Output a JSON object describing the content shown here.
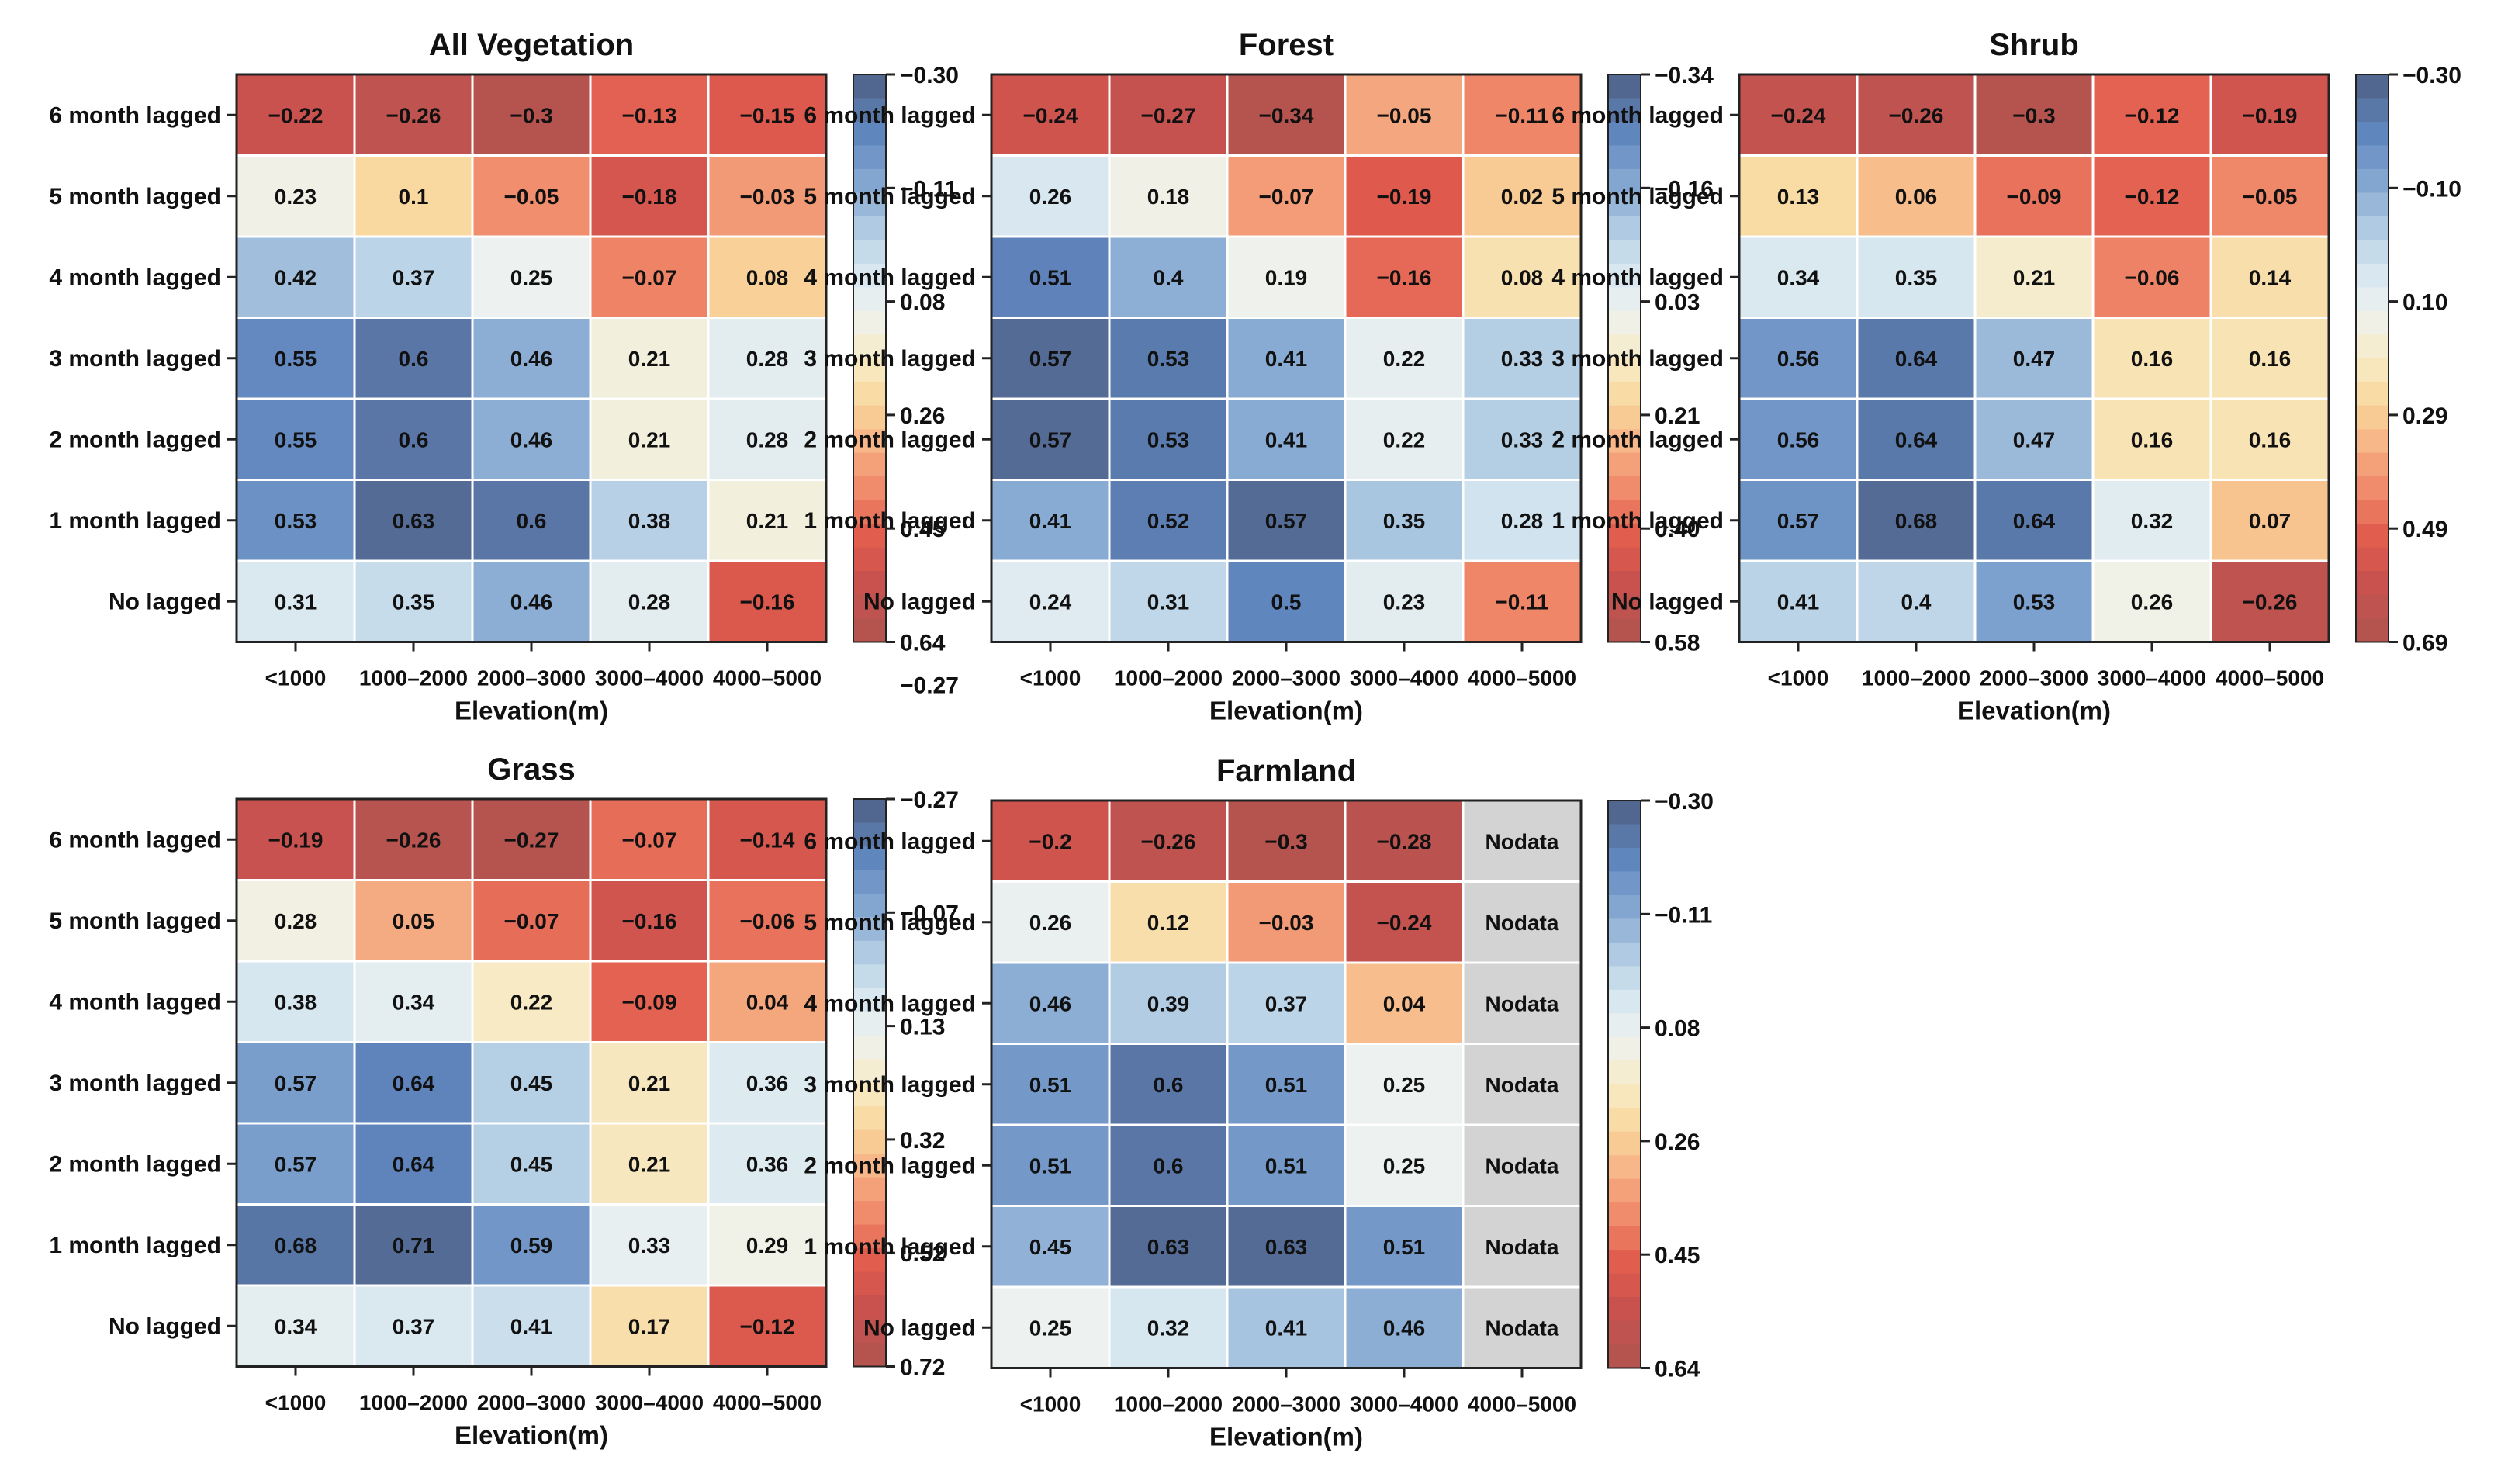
{
  "chart_data": [
    {
      "type": "heatmap",
      "title": "All Vegetation",
      "xlabel": "Elevation(m)",
      "rows": [
        "6 month lagged",
        "5 month lagged",
        "4 month lagged",
        "3 month lagged",
        "2 month lagged",
        "1 month lagged",
        "No lagged"
      ],
      "columns": [
        "<1000",
        "1000–2000",
        "2000–3000",
        "3000–4000",
        "4000–5000"
      ],
      "values": [
        [
          "−0.22",
          "−0.26",
          "−0.3",
          "−0.13",
          "−0.15"
        ],
        [
          "0.23",
          "0.1",
          "−0.05",
          "−0.18",
          "−0.03"
        ],
        [
          "0.42",
          "0.37",
          "0.25",
          "−0.07",
          "0.08"
        ],
        [
          "0.55",
          "0.6",
          "0.46",
          "0.21",
          "0.28"
        ],
        [
          "0.55",
          "0.6",
          "0.46",
          "0.21",
          "0.28"
        ],
        [
          "0.53",
          "0.63",
          "0.6",
          "0.38",
          "0.21"
        ],
        [
          "0.31",
          "0.35",
          "0.46",
          "0.28",
          "−0.16"
        ]
      ],
      "colorbar_ticks": [
        "−0.30",
        "−0.11",
        "0.08",
        "0.26",
        "0.45",
        "0.64"
      ],
      "colorbar_extra": "−0.27",
      "range": [
        -0.3,
        0.64
      ]
    },
    {
      "type": "heatmap",
      "title": "Forest",
      "xlabel": "Elevation(m)",
      "rows": [
        "6 month lagged",
        "5 month lagged",
        "4 month lagged",
        "3 month lagged",
        "2 month lagged",
        "1 month lagged",
        "No lagged"
      ],
      "columns": [
        "<1000",
        "1000–2000",
        "2000–3000",
        "3000–4000",
        "4000–5000"
      ],
      "values": [
        [
          "−0.24",
          "−0.27",
          "−0.34",
          "−0.05",
          "−0.11"
        ],
        [
          "0.26",
          "0.18",
          "−0.07",
          "−0.19",
          "0.02"
        ],
        [
          "0.51",
          "0.4",
          "0.19",
          "−0.16",
          "0.08"
        ],
        [
          "0.57",
          "0.53",
          "0.41",
          "0.22",
          "0.33"
        ],
        [
          "0.57",
          "0.53",
          "0.41",
          "0.22",
          "0.33"
        ],
        [
          "0.41",
          "0.52",
          "0.57",
          "0.35",
          "0.28"
        ],
        [
          "0.24",
          "0.31",
          "0.5",
          "0.23",
          "−0.11"
        ]
      ],
      "colorbar_ticks": [
        "−0.34",
        "−0.16",
        "0.03",
        "0.21",
        "0.40",
        "0.58"
      ],
      "range": [
        -0.34,
        0.58
      ]
    },
    {
      "type": "heatmap",
      "title": "Shrub",
      "xlabel": "Elevation(m)",
      "rows": [
        "6 month lagged",
        "5 month lagged",
        "4 month lagged",
        "3 month lagged",
        "2 month lagged",
        "1 month lagged",
        "No lagged"
      ],
      "columns": [
        "<1000",
        "1000–2000",
        "2000–3000",
        "3000–4000",
        "4000–5000"
      ],
      "values": [
        [
          "−0.24",
          "−0.26",
          "−0.3",
          "−0.12",
          "−0.19"
        ],
        [
          "0.13",
          "0.06",
          "−0.09",
          "−0.12",
          "−0.05"
        ],
        [
          "0.34",
          "0.35",
          "0.21",
          "−0.06",
          "0.14"
        ],
        [
          "0.56",
          "0.64",
          "0.47",
          "0.16",
          "0.16"
        ],
        [
          "0.56",
          "0.64",
          "0.47",
          "0.16",
          "0.16"
        ],
        [
          "0.57",
          "0.68",
          "0.64",
          "0.32",
          "0.07"
        ],
        [
          "0.41",
          "0.4",
          "0.53",
          "0.26",
          "−0.26"
        ]
      ],
      "colorbar_ticks": [
        "−0.30",
        "−0.10",
        "0.10",
        "0.29",
        "0.49",
        "0.69"
      ],
      "range": [
        -0.3,
        0.69
      ]
    },
    {
      "type": "heatmap",
      "title": "Grass",
      "xlabel": "Elevation(m)",
      "rows": [
        "6 month lagged",
        "5 month lagged",
        "4 month lagged",
        "3 month lagged",
        "2 month lagged",
        "1 month lagged",
        "No lagged"
      ],
      "columns": [
        "<1000",
        "1000–2000",
        "2000–3000",
        "3000–4000",
        "4000–5000"
      ],
      "values": [
        [
          "−0.19",
          "−0.26",
          "−0.27",
          "−0.07",
          "−0.14"
        ],
        [
          "0.28",
          "0.05",
          "−0.07",
          "−0.16",
          "−0.06"
        ],
        [
          "0.38",
          "0.34",
          "0.22",
          "−0.09",
          "0.04"
        ],
        [
          "0.57",
          "0.64",
          "0.45",
          "0.21",
          "0.36"
        ],
        [
          "0.57",
          "0.64",
          "0.45",
          "0.21",
          "0.36"
        ],
        [
          "0.68",
          "0.71",
          "0.59",
          "0.33",
          "0.29"
        ],
        [
          "0.34",
          "0.37",
          "0.41",
          "0.17",
          "−0.12"
        ]
      ],
      "colorbar_ticks": [
        "−0.27",
        "−0.07",
        "0.13",
        "0.32",
        "0.52",
        "0.72"
      ],
      "range": [
        -0.27,
        0.72
      ]
    },
    {
      "type": "heatmap",
      "title": "Farmland",
      "xlabel": "Elevation(m)",
      "rows": [
        "6 month lagged",
        "5 month lagged",
        "4 month lagged",
        "3 month lagged",
        "2 month lagged",
        "1 month lagged",
        "No lagged"
      ],
      "columns": [
        "<1000",
        "1000–2000",
        "2000–3000",
        "3000–4000",
        "4000–5000"
      ],
      "values": [
        [
          "−0.2",
          "−0.26",
          "−0.3",
          "−0.28",
          "Nodata"
        ],
        [
          "0.26",
          "0.12",
          "−0.03",
          "−0.24",
          "Nodata"
        ],
        [
          "0.46",
          "0.39",
          "0.37",
          "0.04",
          "Nodata"
        ],
        [
          "0.51",
          "0.6",
          "0.51",
          "0.25",
          "Nodata"
        ],
        [
          "0.51",
          "0.6",
          "0.51",
          "0.25",
          "Nodata"
        ],
        [
          "0.45",
          "0.63",
          "0.63",
          "0.51",
          "Nodata"
        ],
        [
          "0.25",
          "0.32",
          "0.41",
          "0.46",
          "Nodata"
        ]
      ],
      "colorbar_ticks": [
        "−0.30",
        "−0.11",
        "0.08",
        "0.26",
        "0.45",
        "0.64"
      ],
      "range": [
        -0.3,
        0.64
      ]
    }
  ],
  "colors": {
    "scale": [
      "#52678f",
      "#5f85bd",
      "#7fa3cf",
      "#a9c6e0",
      "#d4e6f0",
      "#eef2f0",
      "#f7ebc7",
      "#f9d79b",
      "#f6b084",
      "#ef8668",
      "#e05a4d",
      "#c8524f",
      "#b5544f"
    ],
    "nodata": "#d3d3d3",
    "grid": "#ffffff",
    "frame": "#222222"
  }
}
